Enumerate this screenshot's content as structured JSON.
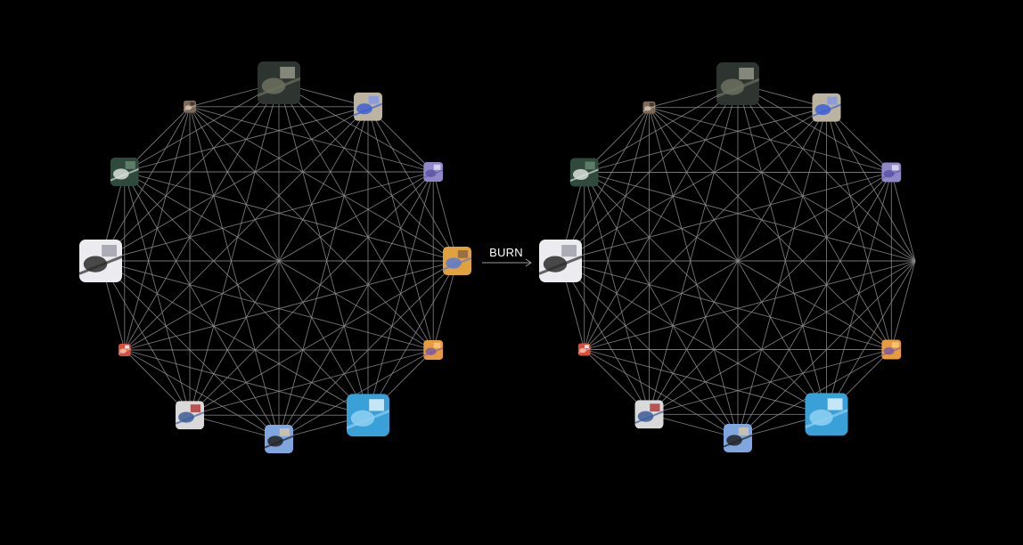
{
  "transition": {
    "label": "BURN",
    "arrow_icon": "arrow-right-icon"
  },
  "colors": {
    "background": "#000000",
    "edge": "#8a8a8a",
    "label": "#ffffff"
  },
  "graphs": [
    {
      "id": "before",
      "node_count": 12,
      "nodes": [
        {
          "thumbnail": "aerial-city-map",
          "palette": [
            "#2e3530",
            "#6c705f",
            "#9a9c8c"
          ],
          "size_class": "large"
        },
        {
          "thumbnail": "blue-flower",
          "palette": [
            "#bcb4a0",
            "#3d5fd6",
            "#7f96e8"
          ],
          "size_class": "medium"
        },
        {
          "thumbnail": "purple-scene",
          "palette": [
            "#8e88c8",
            "#5e55a5",
            "#e4e2f2"
          ],
          "size_class": "small"
        },
        {
          "thumbnail": "painted-figure",
          "palette": [
            "#e0a13f",
            "#5b7ad0",
            "#8a6246"
          ],
          "size_class": "medium"
        },
        {
          "thumbnail": "orange-pattern",
          "palette": [
            "#e89a3e",
            "#7a5aa8",
            "#f3d080"
          ],
          "size_class": "small"
        },
        {
          "thumbnail": "blue-pool",
          "palette": [
            "#3aa0d8",
            "#8fd0f2",
            "#e9f7ff"
          ],
          "size_class": "large"
        },
        {
          "thumbnail": "figure-on-blue",
          "palette": [
            "#7fa6de",
            "#222222",
            "#d8c7a8"
          ],
          "size_class": "medium"
        },
        {
          "thumbnail": "street-collage",
          "palette": [
            "#d9d9d9",
            "#3d5c99",
            "#b03030"
          ],
          "size_class": "medium"
        },
        {
          "thumbnail": "red-object",
          "palette": [
            "#d8503c",
            "#f0c0b0",
            "#ffffff"
          ],
          "size_class": "tiny"
        },
        {
          "thumbnail": "white-sketch",
          "palette": [
            "#ecebf0",
            "#2b2b2b",
            "#9c9ca8"
          ],
          "size_class": "large"
        },
        {
          "thumbnail": "green-sign",
          "palette": [
            "#2f4a3c",
            "#d8e0d8",
            "#6a8a74"
          ],
          "size_class": "medium"
        },
        {
          "thumbnail": "small-portrait",
          "palette": [
            "#7d6a58",
            "#d2c2b0",
            "#3a302a"
          ],
          "size_class": "tiny"
        }
      ]
    },
    {
      "id": "after",
      "node_count": 12,
      "nodes": [
        {
          "thumbnail": "aerial-city-map",
          "palette": [
            "#2e3530",
            "#6c705f",
            "#9a9c8c"
          ],
          "size_class": "large"
        },
        {
          "thumbnail": "blue-flower",
          "palette": [
            "#bcb4a0",
            "#3d5fd6",
            "#7f96e8"
          ],
          "size_class": "medium"
        },
        {
          "thumbnail": "purple-scene",
          "palette": [
            "#8e88c8",
            "#5e55a5",
            "#e4e2f2"
          ],
          "size_class": "small"
        },
        {
          "thumbnail": "removed",
          "palette": [],
          "size_class": "none"
        },
        {
          "thumbnail": "orange-pattern",
          "palette": [
            "#e89a3e",
            "#7a5aa8",
            "#f3d080"
          ],
          "size_class": "small"
        },
        {
          "thumbnail": "blue-pool",
          "palette": [
            "#3aa0d8",
            "#8fd0f2",
            "#e9f7ff"
          ],
          "size_class": "large"
        },
        {
          "thumbnail": "figure-on-blue",
          "palette": [
            "#7fa6de",
            "#222222",
            "#d8c7a8"
          ],
          "size_class": "medium"
        },
        {
          "thumbnail": "street-collage",
          "palette": [
            "#d9d9d9",
            "#3d5c99",
            "#b03030"
          ],
          "size_class": "medium"
        },
        {
          "thumbnail": "red-object",
          "palette": [
            "#d8503c",
            "#f0c0b0",
            "#ffffff"
          ],
          "size_class": "tiny"
        },
        {
          "thumbnail": "white-sketch",
          "palette": [
            "#ecebf0",
            "#2b2b2b",
            "#9c9ca8"
          ],
          "size_class": "large"
        },
        {
          "thumbnail": "green-sign",
          "palette": [
            "#2f4a3c",
            "#d8e0d8",
            "#6a8a74"
          ],
          "size_class": "medium"
        },
        {
          "thumbnail": "small-portrait",
          "palette": [
            "#7d6a58",
            "#d2c2b0",
            "#3a302a"
          ],
          "size_class": "tiny"
        }
      ]
    }
  ]
}
